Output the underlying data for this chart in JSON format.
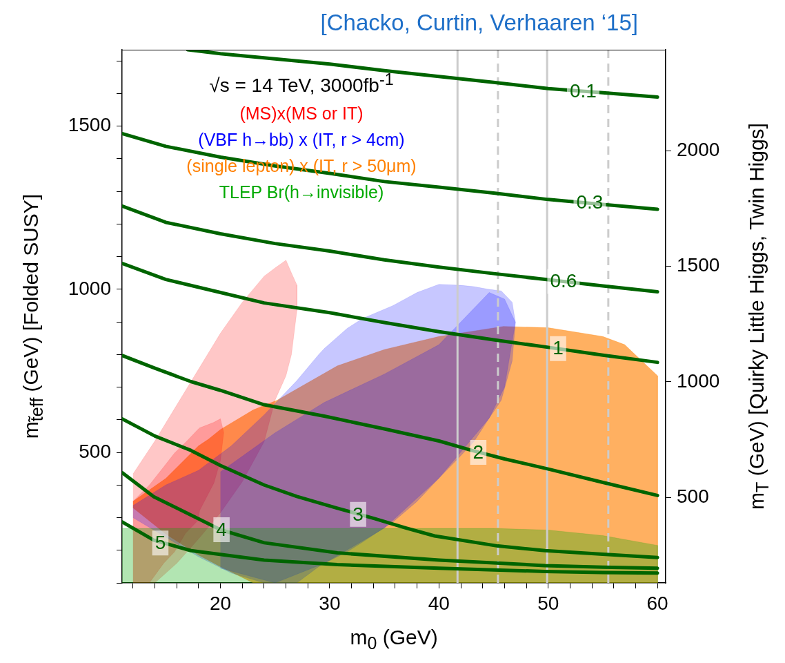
{
  "chart_data": {
    "type": "line",
    "title": "[Chacko, Curtin, Verhaaren ‘15]",
    "xlabel": "m$_{0}$ (GeV)",
    "ylabel": "m$_{t̃eff}$ (GeV)   [Folded SUSY]",
    "y2label": "m$_{T}$ (GeV)   [Quirky Little Higgs, Twin Higgs]",
    "xlim": [
      11,
      60.75
    ],
    "xticks": [
      {
        "value": 12,
        "label": null
      },
      {
        "value": 14,
        "label": null
      },
      {
        "value": 16,
        "label": null
      },
      {
        "value": 18,
        "label": null
      },
      20,
      {
        "value": 22,
        "label": null
      },
      {
        "value": 24,
        "label": null
      },
      {
        "value": 26,
        "label": null
      },
      {
        "value": 28,
        "label": null
      },
      30,
      {
        "value": 32,
        "label": null
      },
      {
        "value": 34,
        "label": null
      },
      {
        "value": 36,
        "label": null
      },
      {
        "value": 38,
        "label": null
      },
      40,
      {
        "value": 42,
        "label": null
      },
      {
        "value": 44,
        "label": null
      },
      {
        "value": 46,
        "label": null
      },
      {
        "value": 48,
        "label": null
      },
      50,
      {
        "value": 52,
        "label": null
      },
      {
        "value": 54,
        "label": null
      },
      {
        "value": 56,
        "label": null
      },
      {
        "value": 58,
        "label": null
      },
      60
    ],
    "ylim": [
      100,
      1734
    ],
    "yticks": [
      {
        "value": 100,
        "label": null
      },
      {
        "value": 200,
        "label": null
      },
      {
        "value": 300,
        "label": null
      },
      {
        "value": 400,
        "label": null
      },
      500,
      {
        "value": 600,
        "label": null
      },
      {
        "value": 700,
        "label": null
      },
      {
        "value": 800,
        "label": null
      },
      {
        "value": 900,
        "label": null
      },
      1000,
      {
        "value": 1100,
        "label": null
      },
      {
        "value": 1200,
        "label": null
      },
      {
        "value": 1300,
        "label": null
      },
      {
        "value": 1400,
        "label": null
      },
      1500,
      {
        "value": 1600,
        "label": null
      },
      {
        "value": 1700,
        "label": null
      }
    ],
    "y2lim": [
      130,
      2437
    ],
    "y2ticks": [
      500,
      1000,
      1500,
      2000
    ],
    "grid": false,
    "legend": "top left",
    "marker": "none",
    "annotations": [
      "√s = 14 TeV, 3000fb$^{-1}$",
      {
        "text": "0.1",
        "x": 53.2,
        "y": 1606
      },
      {
        "text": "0.3",
        "x": 53.8,
        "y": 1265
      },
      {
        "text": "0.6",
        "x": 51.4,
        "y": 1024
      },
      {
        "text": "1",
        "x": 50.9,
        "y": 818
      },
      {
        "text": "2",
        "x": 43.6,
        "y": 500
      },
      {
        "text": "3",
        "x": 32.6,
        "y": 310
      },
      {
        "text": "4",
        "x": 20.1,
        "y": 263
      },
      {
        "text": "5",
        "x": 14.5,
        "y": 222
      }
    ],
    "ref_lines": [
      {
        "axis": "x",
        "value": 41.7,
        "color": "#cccccc",
        "line_style": "solid"
      },
      {
        "axis": "x",
        "value": 45.4,
        "color": "#cccccc",
        "line_style": "dashed"
      },
      {
        "axis": "x",
        "value": 49.9,
        "color": "#cccccc",
        "line_style": "solid"
      },
      {
        "axis": "x",
        "value": 55.5,
        "color": "#cccccc",
        "line_style": "dashed"
      }
    ],
    "series": [
      {
        "type": "area",
        "name": "(MS)x(MS or IT)",
        "color": "#ff0000",
        "x": [
          12,
          14,
          16,
          18,
          20,
          22,
          24,
          25,
          26,
          26.5,
          27,
          27,
          26.5,
          26,
          25,
          24,
          22,
          20,
          18,
          16,
          14,
          12
        ],
        "values": [
          434,
          535,
          645,
          755,
          865,
          960,
          1040,
          1065,
          1089,
          1050,
          1013,
          935,
          800,
          735,
          660,
          533,
          410,
          315,
          235,
          160,
          100,
          100
        ]
      },
      {
        "type": "area",
        "color": "#ff0000",
        "x": [
          12,
          13.5,
          14.8,
          15.8,
          16.8,
          17.9,
          18.1,
          19.4,
          20,
          20.3,
          20,
          19.4,
          18.1,
          17.9,
          16.8,
          15.8,
          14.8,
          13.5,
          12
        ],
        "values": [
          350,
          400,
          455,
          498,
          530,
          569,
          575,
          592,
          603,
          561,
          475,
          406,
          322,
          290,
          252,
          195,
          160,
          100,
          100
        ]
      },
      {
        "type": "area",
        "name": "(VBF h→bb) x (IT, r > 4cm)",
        "color": "#0000ff",
        "x": [
          12,
          15,
          18,
          21,
          24,
          27,
          29,
          29.5,
          31.6,
          33,
          35.8,
          38,
          40,
          42,
          43.2,
          44.5,
          45.7,
          46.7,
          47,
          46.7,
          45.7,
          44.5,
          43.2,
          42,
          40,
          38,
          35.8,
          33,
          31.6,
          29.5,
          29,
          27,
          24,
          21,
          18,
          15,
          12
        ],
        "values": [
          337,
          400,
          445,
          520,
          615,
          720,
          800,
          818,
          880,
          910,
          950,
          990,
          1015,
          1012,
          1008,
          1000,
          995,
          960,
          899,
          780,
          660,
          600,
          533,
          490,
          421,
          350,
          287,
          225,
          195,
          160,
          150,
          100,
          100,
          130,
          180,
          240,
          300
        ]
      },
      {
        "type": "area",
        "color": "#0000ff",
        "x": [
          20,
          25,
          29.5,
          35,
          40,
          44.6,
          46,
          47,
          46,
          44.6,
          40,
          35,
          29.5,
          25,
          20
        ],
        "values": [
          440,
          560,
          653,
          740,
          830,
          990,
          970,
          899,
          700,
          605,
          421,
          268,
          160,
          100,
          145
        ]
      },
      {
        "type": "area",
        "name": "(single lepton) x (IT, r > 50μm)",
        "color": "#ff8000",
        "x": [
          12,
          15,
          18,
          18.9,
          20,
          23,
          25.2,
          30.7,
          35,
          40,
          45.9,
          50,
          55,
          57,
          60,
          60,
          23,
          20,
          18,
          15,
          12
        ],
        "values": [
          350,
          420,
          520,
          540,
          570,
          630,
          660,
          765,
          815,
          855,
          886,
          882,
          855,
          830,
          735,
          100,
          100,
          150,
          185,
          250,
          330
        ]
      },
      {
        "type": "area",
        "name": "TLEP Br(h→invisible)",
        "color": "#00aa00",
        "x": [
          11,
          12,
          45,
          50,
          55,
          60,
          60,
          11
        ],
        "values": [
          267,
          267,
          267,
          262,
          245,
          215,
          100,
          100
        ]
      },
      {
        "color": "#006400",
        "x": [
          17,
          20,
          25,
          30,
          35,
          40,
          45,
          50,
          55,
          60
        ],
        "values": [
          1734,
          1722,
          1706,
          1690,
          1670,
          1652,
          1634,
          1615,
          1602,
          1589
        ]
      },
      {
        "color": "#006400",
        "x": [
          11,
          15,
          20,
          25,
          30,
          35,
          40,
          45,
          50,
          55,
          60
        ],
        "values": [
          1477,
          1438,
          1405,
          1378,
          1355,
          1330,
          1313,
          1295,
          1275,
          1260,
          1245
        ]
      },
      {
        "color": "#006400",
        "x": [
          11,
          15,
          20,
          25,
          30,
          35,
          40,
          45,
          50,
          55,
          60
        ],
        "values": [
          1255,
          1205,
          1170,
          1140,
          1117,
          1090,
          1068,
          1048,
          1029,
          1010,
          992
        ]
      },
      {
        "color": "#006400",
        "x": [
          11,
          15,
          20,
          24,
          30,
          35,
          40,
          45,
          50,
          55,
          60
        ],
        "values": [
          1079,
          1030,
          990,
          958,
          928,
          898,
          870,
          845,
          822,
          798,
          776
        ]
      },
      {
        "color": "#006400",
        "x": [
          11,
          14,
          17.3,
          20,
          24,
          29.5,
          35,
          40,
          43,
          46,
          50,
          55,
          60
        ],
        "values": [
          797,
          758,
          717,
          690,
          646,
          611,
          572,
          535,
          506,
          480,
          449,
          408,
          368
        ]
      },
      {
        "color": "#006400",
        "x": [
          11,
          14,
          17.3,
          20,
          24,
          27,
          30.7,
          34.1,
          37,
          39.6,
          45.4,
          49.7,
          55,
          60
        ],
        "values": [
          603,
          550,
          506,
          460,
          400,
          365,
          329,
          297,
          268,
          244,
          213,
          199,
          188,
          178
        ]
      },
      {
        "color": "#006400",
        "x": [
          11,
          13.9,
          17.3,
          20,
          24,
          30.7,
          40,
          49.7,
          55,
          60
        ],
        "values": [
          438,
          364,
          308,
          263,
          223,
          192,
          170,
          153,
          148,
          145
        ]
      },
      {
        "color": "#006400",
        "x": [
          11,
          13.9,
          17.3,
          24,
          30.7,
          40,
          49.7,
          55,
          60
        ],
        "values": [
          287,
          231,
          199,
          170,
          156,
          145,
          135,
          132,
          130
        ]
      }
    ]
  }
}
